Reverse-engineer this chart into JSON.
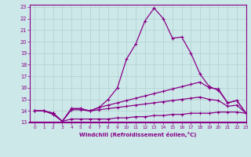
{
  "xlabel": "Windchill (Refroidissement éolien,°C)",
  "xlim": [
    -0.5,
    23
  ],
  "ylim": [
    13,
    23.2
  ],
  "yticks": [
    13,
    14,
    15,
    16,
    17,
    18,
    19,
    20,
    21,
    22,
    23
  ],
  "xticks": [
    0,
    1,
    2,
    3,
    4,
    5,
    6,
    7,
    8,
    9,
    10,
    11,
    12,
    13,
    14,
    15,
    16,
    17,
    18,
    19,
    20,
    21,
    22,
    23
  ],
  "bg_color": "#cde8e8",
  "grid_color": "#b0d0d0",
  "line_color": "#880088",
  "line_peaked": [
    14.0,
    14.0,
    13.8,
    13.1,
    14.2,
    14.2,
    14.0,
    14.3,
    15.0,
    16.0,
    18.5,
    19.8,
    21.8,
    22.9,
    22.0,
    20.3,
    20.4,
    19.0,
    17.2,
    16.1,
    15.8,
    14.7,
    14.9,
    13.8
  ],
  "line_high": [
    14.0,
    14.0,
    13.8,
    13.1,
    14.2,
    14.2,
    14.0,
    14.3,
    14.5,
    14.7,
    14.9,
    15.1,
    15.3,
    15.5,
    15.7,
    15.9,
    16.1,
    16.3,
    16.5,
    16.0,
    15.9,
    14.7,
    14.9,
    13.8
  ],
  "line_mid": [
    14.0,
    14.0,
    13.8,
    13.1,
    14.1,
    14.1,
    14.0,
    14.1,
    14.2,
    14.3,
    14.4,
    14.5,
    14.6,
    14.7,
    14.8,
    14.9,
    15.0,
    15.1,
    15.2,
    15.0,
    14.9,
    14.4,
    14.5,
    13.8
  ],
  "line_low": [
    14.0,
    14.0,
    13.7,
    13.1,
    13.3,
    13.3,
    13.3,
    13.3,
    13.3,
    13.4,
    13.4,
    13.5,
    13.5,
    13.6,
    13.6,
    13.7,
    13.7,
    13.8,
    13.8,
    13.8,
    13.9,
    13.9,
    13.9,
    13.8
  ]
}
